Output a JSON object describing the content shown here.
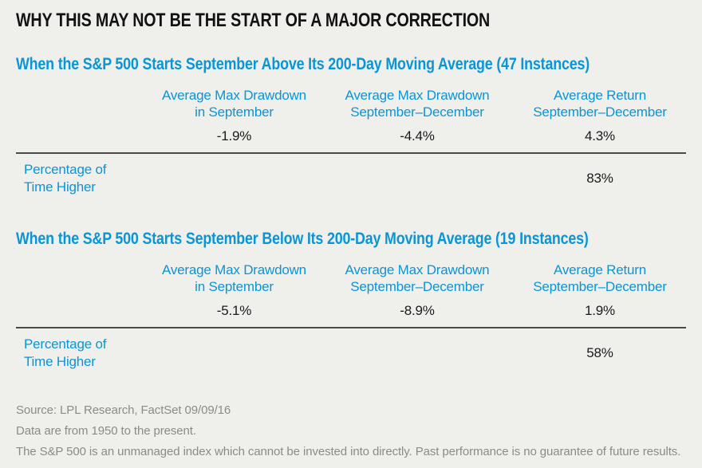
{
  "page": {
    "title": "WHY THIS MAY NOT BE THE START OF A MAJOR CORRECTION",
    "background_color": "#efefec",
    "accent_blue": "#0a95d5",
    "text_color": "#1a1a1a",
    "footer_gray": "#8b8b89",
    "rule_color": "#4a4a4a"
  },
  "sections": [
    {
      "heading": "When the S&P 500 Starts September Above Its 200-Day Moving Average (47 Instances)",
      "columns": [
        "Average Max Drawdown\nin September",
        "Average Max Drawdown\nSeptember–December",
        "Average Return\nSeptember–December"
      ],
      "values": [
        "-1.9%",
        "-4.4%",
        "4.3%"
      ],
      "row_label": "Percentage of\nTime Higher",
      "row_value": "83%"
    },
    {
      "heading": "When the S&P 500 Starts September Below Its 200-Day Moving Average (19 Instances)",
      "columns": [
        "Average Max Drawdown\nin September",
        "Average Max Drawdown\nSeptember–December",
        "Average Return\nSeptember–December"
      ],
      "values": [
        "-5.1%",
        "-8.9%",
        "1.9%"
      ],
      "row_label": "Percentage of\nTime Higher",
      "row_value": "58%"
    }
  ],
  "footer": {
    "source_line": "Source: LPL Research, FactSet   09/09/16",
    "line2": "Data are from 1950 to the present.",
    "line3": "The S&P 500 is an unmanaged index which cannot be invested into directly. Past performance is no guarantee of future results."
  },
  "chart_data": [
    {
      "type": "table",
      "title": "When the S&P 500 Starts September Above Its 200-Day Moving Average (47 Instances)",
      "instances": 47,
      "columns": [
        "Average Max Drawdown in September",
        "Average Max Drawdown September–December",
        "Average Return September–December"
      ],
      "rows": [
        {
          "label": "",
          "values_pct": [
            -1.9,
            -4.4,
            4.3
          ]
        },
        {
          "label": "Percentage of Time Higher",
          "values_pct": [
            null,
            null,
            83
          ]
        }
      ]
    },
    {
      "type": "table",
      "title": "When the S&P 500 Starts September Below Its 200-Day Moving Average (19 Instances)",
      "instances": 19,
      "columns": [
        "Average Max Drawdown in September",
        "Average Max Drawdown September–December",
        "Average Return September–December"
      ],
      "rows": [
        {
          "label": "",
          "values_pct": [
            -5.1,
            -8.9,
            1.9
          ]
        },
        {
          "label": "Percentage of Time Higher",
          "values_pct": [
            null,
            null,
            58
          ]
        }
      ]
    }
  ]
}
